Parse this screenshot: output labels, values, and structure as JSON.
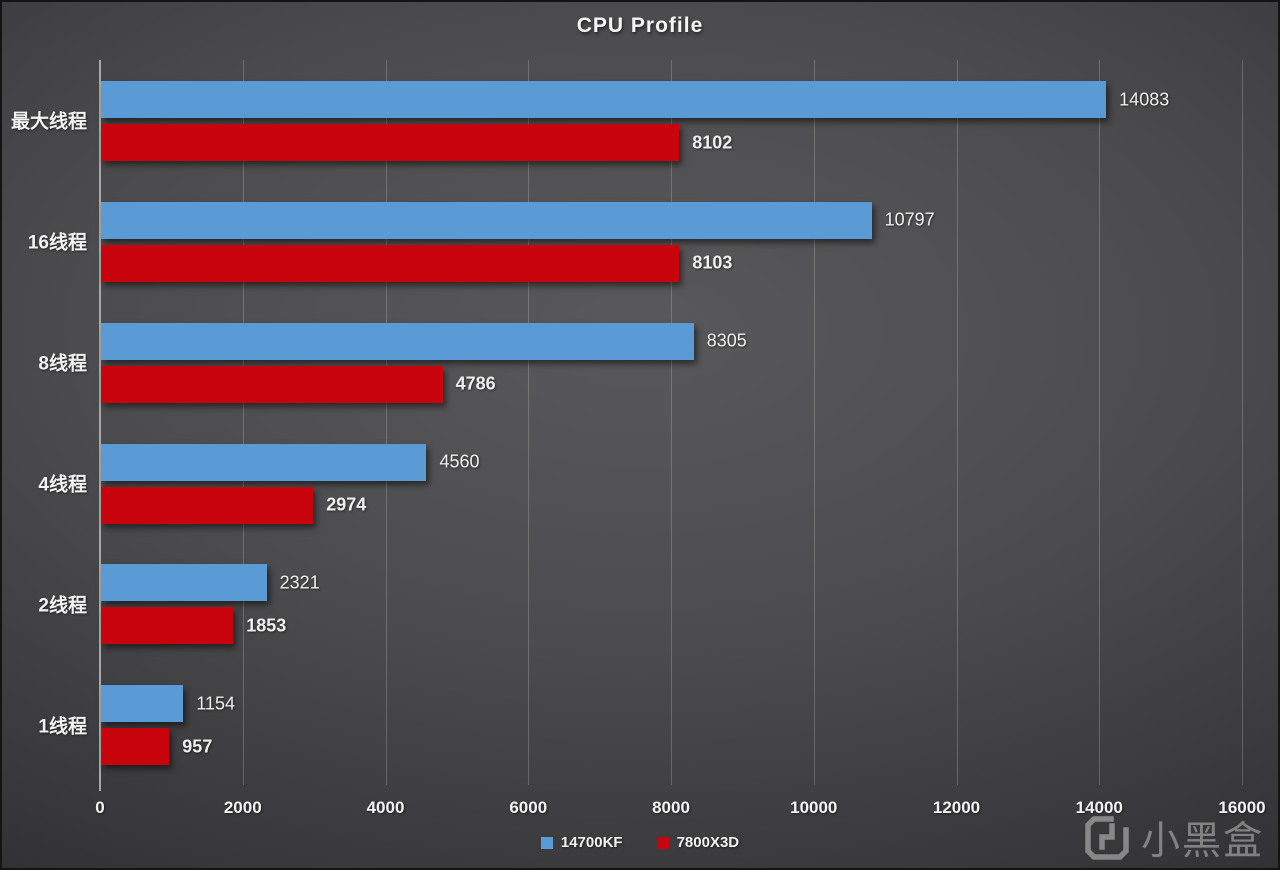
{
  "title": "CPU Profile",
  "watermark": {
    "text": "小黑盒",
    "icon": "heybox-logo-icon"
  },
  "chart_data": {
    "type": "bar",
    "orientation": "horizontal",
    "title": "CPU Profile",
    "categories": [
      "最大线程",
      "16线程",
      "8线程",
      "4线程",
      "2线程",
      "1线程"
    ],
    "series": [
      {
        "name": "14700KF",
        "color": "#5b9bd5",
        "values": [
          14083,
          10797,
          8305,
          4560,
          2321,
          1154
        ],
        "value_label_bold": false
      },
      {
        "name": "7800X3D",
        "color": "#c8040c",
        "values": [
          8102,
          8103,
          4786,
          2974,
          1853,
          957
        ],
        "value_label_bold": true
      }
    ],
    "xlim": [
      0,
      16000
    ],
    "xticks": [
      0,
      2000,
      4000,
      6000,
      8000,
      10000,
      12000,
      14000,
      16000
    ],
    "grid": "vertical-only",
    "legend_position": "bottom-center",
    "background": "dark-radial-gradient",
    "axis_color": "#a8a8a8",
    "label_color": "#f2f2f2"
  }
}
